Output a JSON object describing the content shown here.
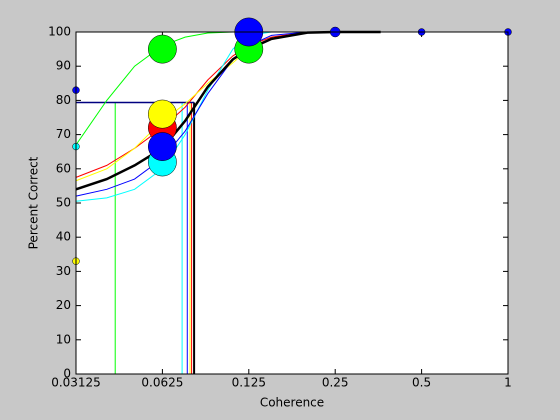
{
  "chart_data": {
    "type": "line",
    "xlabel": "Coherence",
    "ylabel": "Percent Correct",
    "xscale": "log",
    "xlim": [
      0.03125,
      1
    ],
    "ylim": [
      0,
      100
    ],
    "xticks": [
      0.03125,
      0.0625,
      0.125,
      0.25,
      0.5,
      1
    ],
    "yticks": [
      0,
      10,
      20,
      30,
      40,
      50,
      60,
      70,
      80,
      90,
      100
    ],
    "threshold_level": 79.4,
    "threshold_color": "#000080",
    "curve_x": [
      0.03125,
      0.04,
      0.05,
      0.0625,
      0.075,
      0.09,
      0.11,
      0.125,
      0.15,
      0.2,
      0.25,
      0.36
    ],
    "series": [
      {
        "color": "#ff0000",
        "threshold": 0.079,
        "curve": [
          57.5,
          61,
          66,
          72,
          78,
          86,
          93,
          96,
          98.5,
          100,
          100,
          100
        ],
        "points": {
          "x": [
            0.0625
          ],
          "y": [
            72
          ],
          "size": [
            200
          ]
        }
      },
      {
        "color": "#00ff00",
        "threshold": 0.0428,
        "curve": [
          67,
          80,
          90,
          96,
          98.5,
          99.7,
          100,
          100,
          100,
          100,
          100,
          100
        ],
        "points": {
          "x": [
            0.0625,
            0.125
          ],
          "y": [
            95,
            95
          ],
          "size": [
            200,
            200
          ]
        }
      },
      {
        "color": "#00ffff",
        "threshold": 0.0732,
        "curve": [
          50.5,
          51.5,
          54,
          60,
          70,
          83,
          95,
          99,
          100,
          100,
          100,
          100
        ],
        "points": {
          "x": [
            0.03125,
            0.0625
          ],
          "y": [
            66.5,
            62
          ],
          "size": [
            12,
            200
          ]
        }
      },
      {
        "color": "#ffff00",
        "threshold": 0.078,
        "curve": [
          56.5,
          60,
          66,
          74,
          79,
          85,
          91,
          95,
          98,
          100,
          100,
          100
        ],
        "points": {
          "x": [
            0.03125,
            0.0625
          ],
          "y": [
            33,
            76
          ],
          "size": [
            12,
            200
          ]
        }
      },
      {
        "color": "#0000ff",
        "threshold": 0.0763,
        "curve": [
          52,
          54,
          57,
          63,
          71,
          82,
          92,
          96,
          99,
          100,
          100,
          100
        ],
        "points": {
          "x": [
            0.03125,
            0.0625,
            0.125,
            0.25,
            0.5,
            1
          ],
          "y": [
            83,
            66.5,
            100,
            100,
            100,
            100
          ],
          "size": [
            12,
            200,
            200,
            25,
            12,
            12
          ]
        }
      },
      {
        "color": "#000000",
        "threshold": 0.0806,
        "curve": [
          54,
          57,
          61,
          66,
          74,
          84,
          92,
          95,
          98,
          99.8,
          100,
          100
        ],
        "points": {
          "x": [],
          "y": [],
          "size": []
        }
      }
    ]
  }
}
